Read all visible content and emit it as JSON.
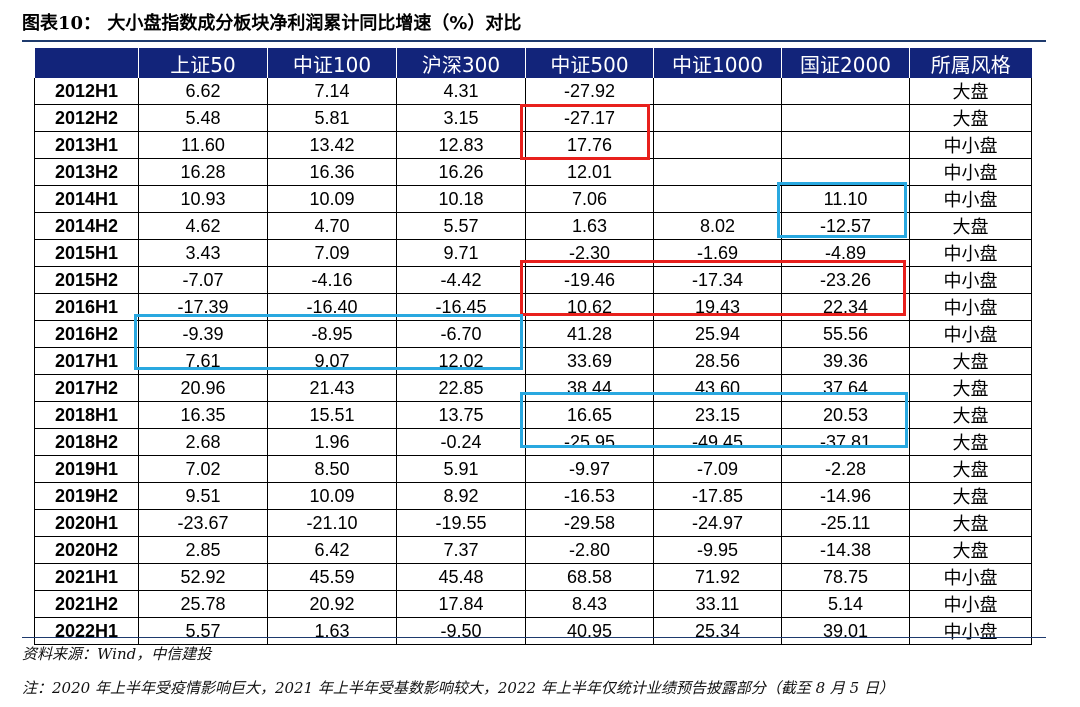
{
  "title": {
    "label": "图表10：",
    "text": "大小盘指数成分板块净利润累计同比增速（%）对比"
  },
  "table": {
    "headers": [
      "",
      "上证50",
      "中证100",
      "沪深300",
      "中证500",
      "中证1000",
      "国证2000",
      "所属风格"
    ],
    "rows": [
      [
        "2012H1",
        "6.62",
        "7.14",
        "4.31",
        "-27.92",
        "",
        "",
        "大盘"
      ],
      [
        "2012H2",
        "5.48",
        "5.81",
        "3.15",
        "-27.17",
        "",
        "",
        "大盘"
      ],
      [
        "2013H1",
        "11.60",
        "13.42",
        "12.83",
        "17.76",
        "",
        "",
        "中小盘"
      ],
      [
        "2013H2",
        "16.28",
        "16.36",
        "16.26",
        "12.01",
        "",
        "",
        "中小盘"
      ],
      [
        "2014H1",
        "10.93",
        "10.09",
        "10.18",
        "7.06",
        "",
        "11.10",
        "中小盘"
      ],
      [
        "2014H2",
        "4.62",
        "4.70",
        "5.57",
        "1.63",
        "8.02",
        "-12.57",
        "大盘"
      ],
      [
        "2015H1",
        "3.43",
        "7.09",
        "9.71",
        "-2.30",
        "-1.69",
        "-4.89",
        "中小盘"
      ],
      [
        "2015H2",
        "-7.07",
        "-4.16",
        "-4.42",
        "-19.46",
        "-17.34",
        "-23.26",
        "中小盘"
      ],
      [
        "2016H1",
        "-17.39",
        "-16.40",
        "-16.45",
        "10.62",
        "19.43",
        "22.34",
        "中小盘"
      ],
      [
        "2016H2",
        "-9.39",
        "-8.95",
        "-6.70",
        "41.28",
        "25.94",
        "55.56",
        "中小盘"
      ],
      [
        "2017H1",
        "7.61",
        "9.07",
        "12.02",
        "33.69",
        "28.56",
        "39.36",
        "大盘"
      ],
      [
        "2017H2",
        "20.96",
        "21.43",
        "22.85",
        "38.44",
        "43.60",
        "37.64",
        "大盘"
      ],
      [
        "2018H1",
        "16.35",
        "15.51",
        "13.75",
        "16.65",
        "23.15",
        "20.53",
        "大盘"
      ],
      [
        "2018H2",
        "2.68",
        "1.96",
        "-0.24",
        "-25.95",
        "-49.45",
        "-37.81",
        "大盘"
      ],
      [
        "2019H1",
        "7.02",
        "8.50",
        "5.91",
        "-9.97",
        "-7.09",
        "-2.28",
        "大盘"
      ],
      [
        "2019H2",
        "9.51",
        "10.09",
        "8.92",
        "-16.53",
        "-17.85",
        "-14.96",
        "大盘"
      ],
      [
        "2020H1",
        "-23.67",
        "-21.10",
        "-19.55",
        "-29.58",
        "-24.97",
        "-25.11",
        "大盘"
      ],
      [
        "2020H2",
        "2.85",
        "6.42",
        "7.37",
        "-2.80",
        "-9.95",
        "-14.38",
        "大盘"
      ],
      [
        "2021H1",
        "52.92",
        "45.59",
        "45.48",
        "68.58",
        "71.92",
        "78.75",
        "中小盘"
      ],
      [
        "2021H2",
        "25.78",
        "20.92",
        "17.84",
        "8.43",
        "33.11",
        "5.14",
        "中小盘"
      ],
      [
        "2022H1",
        "5.57",
        "1.63",
        "-9.50",
        "40.95",
        "25.34",
        "39.01",
        "中小盘"
      ]
    ]
  },
  "highlight_colors": {
    "red": "#e8201c",
    "blue": "#29a8e0"
  },
  "source": "资料来源：Wind，中信建投",
  "note": "注：2020 年上半年受疫情影响巨大，2021 年上半年受基数影响较大，2022 年上半年仅统计业绩预告披露部分（截至 8 月 5 日）"
}
